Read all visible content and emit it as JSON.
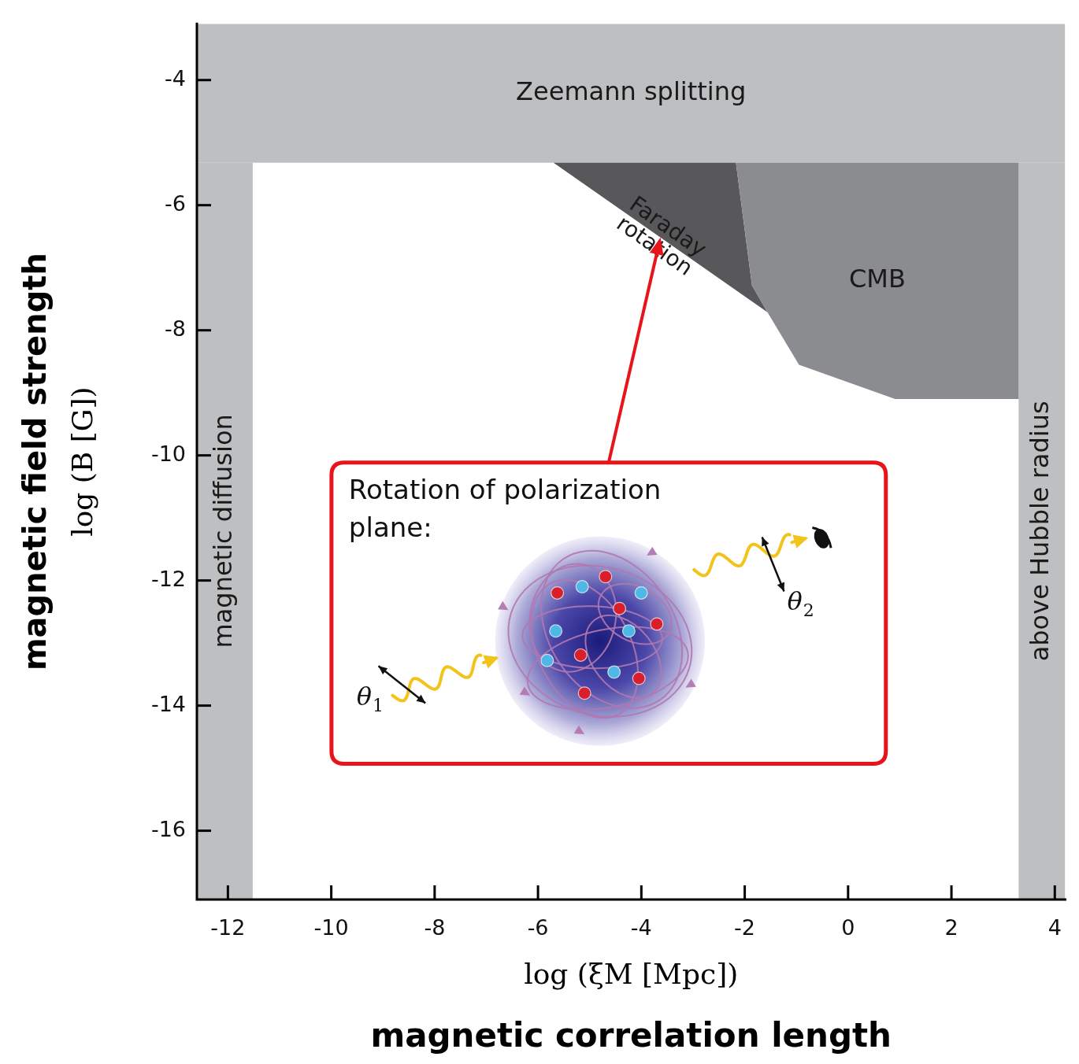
{
  "chart_data": {
    "type": "area",
    "x_label": "log (ξM [Mpc])",
    "x_title": "magnetic correlation length",
    "y_label": "log (B [G])",
    "y_title": "magnetic field strength",
    "xlim": [
      -12.6,
      4.2
    ],
    "xticks": [
      -12,
      -10,
      -8,
      -6,
      -4,
      -2,
      0,
      2,
      4
    ],
    "ylim": [
      -17.1,
      -3.1
    ],
    "yticks": [
      -16,
      -14,
      -12,
      -10,
      -8,
      -6,
      -4
    ],
    "grid": false,
    "regions": [
      {
        "label": "Zeemann splitting",
        "color": "#bebfc1",
        "x": [
          -12.6,
          4.2,
          4.2,
          -12.6
        ],
        "y": [
          -5.32,
          -5.32,
          -3.1,
          -3.1
        ]
      },
      {
        "label": "magnetic diffusion",
        "color": "#bebfc1",
        "x": [
          -12.6,
          -11.52,
          -11.52,
          -12.6
        ],
        "y": [
          -17.1,
          -17.1,
          -5.32,
          -5.32
        ]
      },
      {
        "label": "above Hubble radius",
        "color": "#bebfc1",
        "x": [
          3.3,
          4.2,
          4.2,
          3.3
        ],
        "y": [
          -17.1,
          -17.1,
          -5.32,
          -5.32
        ]
      },
      {
        "label": "Faraday rotation",
        "color": "#58585b",
        "x": [
          -5.7,
          -2.17,
          -1.86,
          -1.56
        ],
        "y": [
          -5.32,
          -5.32,
          -7.28,
          -7.71
        ]
      },
      {
        "label": "CMB",
        "color": "#8b8c8f",
        "x": [
          -2.17,
          3.3,
          3.3,
          0.91,
          -0.95,
          -1.56,
          -1.86
        ],
        "y": [
          -5.32,
          -5.32,
          -9.1,
          -9.1,
          -8.55,
          -7.71,
          -7.28
        ]
      }
    ],
    "annotation": {
      "text": "Rotation of polarization plane:",
      "angle_in": "θ1",
      "angle_out": "θ2",
      "points_to": "Faraday rotation"
    }
  }
}
